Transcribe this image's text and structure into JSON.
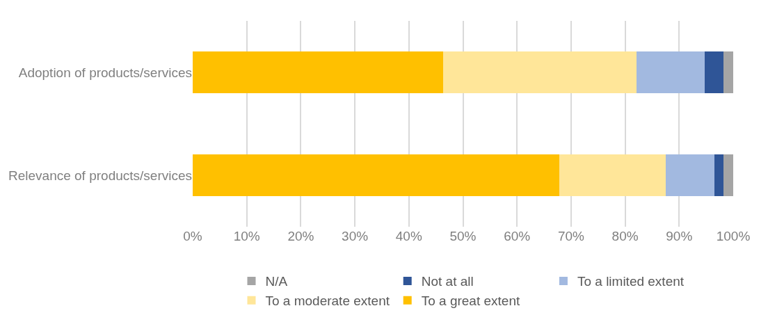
{
  "chart_data": {
    "type": "bar",
    "orientation": "horizontal",
    "stacked": true,
    "categories": [
      "Adoption of products/services",
      "Relevance of products/services"
    ],
    "series": [
      {
        "name": "To a great extent",
        "color": "#ffc000",
        "values": [
          46.3,
          67.8
        ]
      },
      {
        "name": "To a moderate extent",
        "color": "#ffe699",
        "values": [
          35.8,
          19.7
        ]
      },
      {
        "name": "To a limited extent",
        "color": "#a2b9e0",
        "values": [
          12.6,
          9.0
        ]
      },
      {
        "name": "Not at all",
        "color": "#2f5597",
        "values": [
          3.5,
          1.7
        ]
      },
      {
        "name": "N/A",
        "color": "#a5a5a5",
        "values": [
          1.8,
          1.8
        ]
      }
    ],
    "xlim": [
      0,
      100
    ],
    "xticks": [
      {
        "value": 0,
        "label": "0%"
      },
      {
        "value": 10,
        "label": "10%"
      },
      {
        "value": 20,
        "label": "20%"
      },
      {
        "value": 30,
        "label": "30%"
      },
      {
        "value": 40,
        "label": "40%"
      },
      {
        "value": 50,
        "label": "50%"
      },
      {
        "value": 60,
        "label": "60%"
      },
      {
        "value": 70,
        "label": "70%"
      },
      {
        "value": 80,
        "label": "80%"
      },
      {
        "value": 90,
        "label": "90%"
      },
      {
        "value": 100,
        "label": "100%"
      }
    ],
    "grid": "x",
    "legend": "bottom"
  }
}
